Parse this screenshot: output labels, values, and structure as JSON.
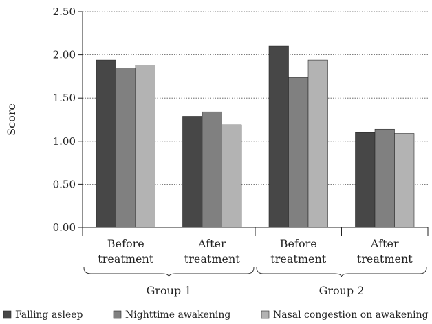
{
  "chart_data": {
    "type": "bar",
    "title": "",
    "ylabel": "Score",
    "xlabel": "",
    "ylim": [
      0,
      2.5
    ],
    "yticks": [
      "0.00",
      "0.50",
      "1.00",
      "1.50",
      "2.00",
      "2.50"
    ],
    "grid": "horizontal dotted",
    "legend_position": "bottom",
    "categories": [
      [
        "Before",
        "treatment"
      ],
      [
        "After",
        "treatment"
      ],
      [
        "Before",
        "treatment"
      ],
      [
        "After",
        "treatment"
      ]
    ],
    "groups": [
      {
        "label": "Group 1",
        "categories": [
          0,
          1
        ]
      },
      {
        "label": "Group 2",
        "categories": [
          2,
          3
        ]
      }
    ],
    "series": [
      {
        "name": "Falling asleep",
        "color": "#474747",
        "values": [
          1.94,
          1.29,
          2.1,
          1.1
        ]
      },
      {
        "name": "Nighttime awakening",
        "color": "#808080",
        "values": [
          1.85,
          1.34,
          1.74,
          1.14
        ]
      },
      {
        "name": "Nasal congestion on awakening",
        "color": "#b3b3b3",
        "values": [
          1.88,
          1.19,
          1.94,
          1.09
        ]
      }
    ]
  }
}
